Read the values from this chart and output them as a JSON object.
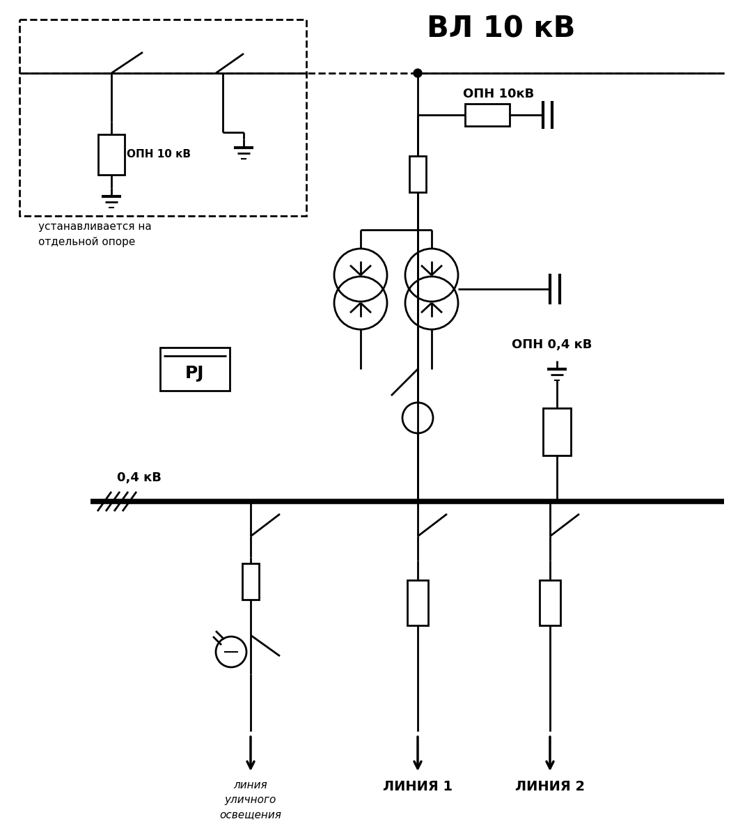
{
  "title": "ВЛ 10 кВ",
  "bg_color": "#ffffff",
  "line_color": "#000000",
  "figsize": [
    10.5,
    11.86
  ],
  "dpi": 100,
  "opn10_label": "ОПН 10кВ",
  "opn04_label": "ОПН 0,4 кВ",
  "opn10_inset_label": "ОПН 10 кВ",
  "inset_note": "устанавливается на\nотдельной опоре",
  "voltage_label": "0,4 кВ",
  "line1_label": "ЛИНИЯ 1",
  "line2_label": "ЛИНИЯ 2",
  "street_label": "линия\nуличного\nосвещения",
  "pj_label": "РJ"
}
